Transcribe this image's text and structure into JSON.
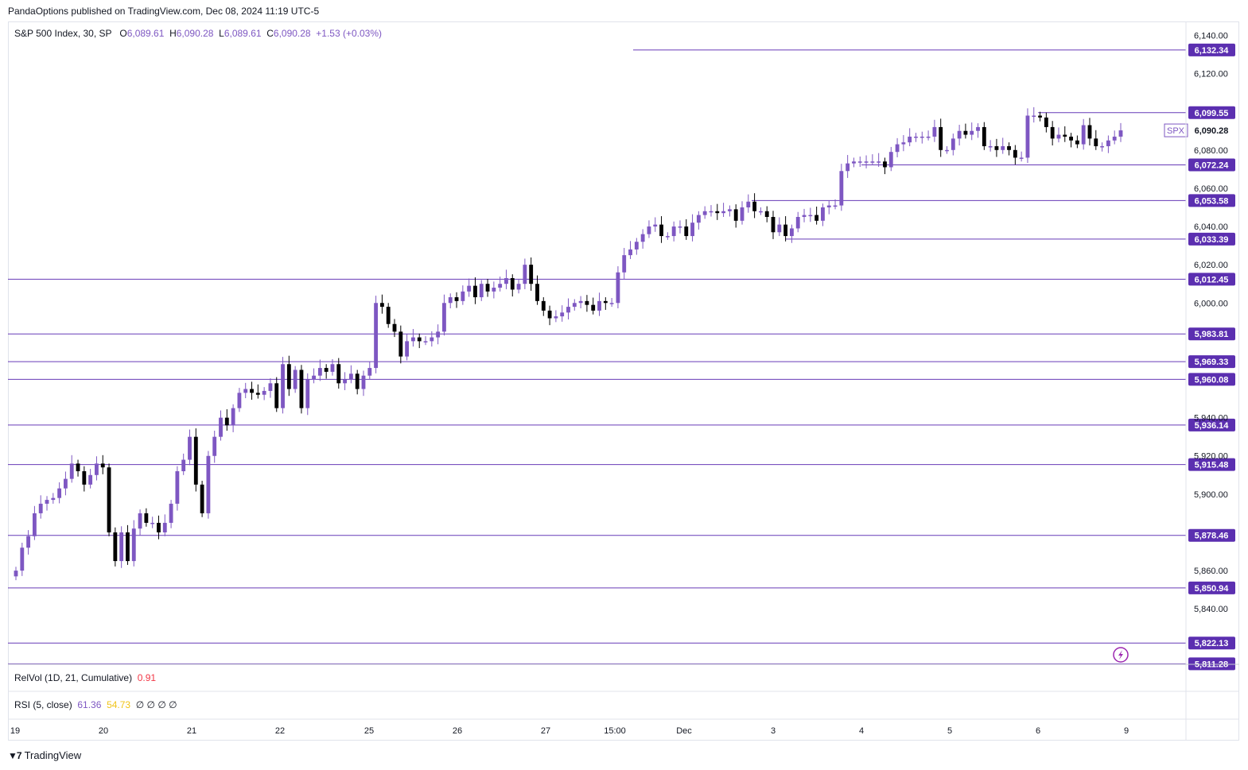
{
  "header": {
    "published": "PandaOptions published on TradingView.com, Dec 08, 2024 11:19 UTC-5"
  },
  "legend": {
    "symbol": "S&P 500 Index, 30, SP",
    "o_label": "O",
    "o_value": "6,089.61",
    "h_label": "H",
    "h_value": "6,090.28",
    "l_label": "L",
    "l_value": "6,089.61",
    "c_label": "C",
    "c_value": "6,090.28",
    "change": "+1.53 (+0.03%)"
  },
  "indicators": {
    "relvol_label": "RelVol (1D, 21, Cumulative)",
    "relvol_value": "0.91",
    "rsi_label": "RSI (5, close)",
    "rsi_value1": "61.36",
    "rsi_value2": "54.73",
    "rsi_nulls": "∅ ∅ ∅ ∅"
  },
  "footer": {
    "brand": "TradingView"
  },
  "colors": {
    "up": "#7e57c2",
    "down": "#000000",
    "level": "#673ab7",
    "relvol": "#f23645",
    "rsi1": "#7e57c2",
    "rsi2": "#f0c419"
  },
  "chart_data": {
    "type": "candlestick",
    "symbol": "SPX",
    "last_price": 6090.28,
    "ylim": [
      5811,
      6146
    ],
    "y_ticks": [
      {
        "value": 6140,
        "label": "6,140.00"
      },
      {
        "value": 6120,
        "label": "6,120.00"
      },
      {
        "value": 6080,
        "label": "6,080.00"
      },
      {
        "value": 6060,
        "label": "6,060.00"
      },
      {
        "value": 6040,
        "label": "6,040.00"
      },
      {
        "value": 6020,
        "label": "6,020.00"
      },
      {
        "value": 6000,
        "label": "6,000.00"
      },
      {
        "value": 5940,
        "label": "5,940.00"
      },
      {
        "value": 5920,
        "label": "5,920.00"
      },
      {
        "value": 5900,
        "label": "5,900.00"
      },
      {
        "value": 5860,
        "label": "5,860.00"
      },
      {
        "value": 5840,
        "label": "5,840.00"
      }
    ],
    "x_ticks": [
      "19",
      "20",
      "21",
      "22",
      "25",
      "26",
      "27",
      "15:00",
      "Dec",
      "3",
      "4",
      "5",
      "6",
      "9"
    ],
    "levels": [
      {
        "value": 6132.34,
        "label": "6,132.34"
      },
      {
        "value": 6099.55,
        "label": "6,099.55"
      },
      {
        "value": 6072.24,
        "label": "6,072.24"
      },
      {
        "value": 6053.58,
        "label": "6,053.58"
      },
      {
        "value": 6033.39,
        "label": "6,033.39"
      },
      {
        "value": 6012.45,
        "label": "6,012.45"
      },
      {
        "value": 5983.81,
        "label": "5,983.81"
      },
      {
        "value": 5969.33,
        "label": "5,969.33"
      },
      {
        "value": 5960.08,
        "label": "5,960.08"
      },
      {
        "value": 5936.14,
        "label": "5,936.14"
      },
      {
        "value": 5915.48,
        "label": "5,915.48"
      },
      {
        "value": 5878.46,
        "label": "5,878.46"
      },
      {
        "value": 5850.94,
        "label": "5,850.94"
      },
      {
        "value": 5822.13,
        "label": "5,822.13"
      },
      {
        "value": 5811.28,
        "label": "5,811.28"
      }
    ],
    "closes": [
      5860,
      5872,
      5878,
      5890,
      5895,
      5897,
      5898,
      5903,
      5908,
      5916,
      5912,
      5905,
      5910,
      5916,
      5914,
      5880,
      5865,
      5880,
      5865,
      5882,
      5890,
      5885,
      5885,
      5880,
      5885,
      5895,
      5912,
      5918,
      5930,
      5905,
      5890,
      5920,
      5930,
      5940,
      5936,
      5945,
      5953,
      5955,
      5953,
      5952,
      5954,
      5958,
      5945,
      5968,
      5955,
      5965,
      5945,
      5960,
      5962,
      5966,
      5964,
      5968,
      5958,
      5960,
      5963,
      5955,
      5962,
      5966,
      6000,
      5998,
      5989,
      5985,
      5972,
      5980,
      5982,
      5980,
      5980,
      5982,
      5985,
      6000,
      6003,
      6001,
      6006,
      6009,
      6003,
      6010,
      6006,
      6008,
      6010,
      6013,
      6007,
      6010,
      6020,
      6010,
      6001,
      5996,
      5992,
      5993,
      5995,
      5998,
      6000,
      6001,
      5999,
      5996,
      6001,
      6000,
      6000,
      6016,
      6025,
      6028,
      6032,
      6036,
      6040,
      6041,
      6035,
      6035,
      6040,
      6040,
      6035,
      6042,
      6046,
      6048,
      6048,
      6047,
      6048,
      6049,
      6043,
      6050,
      6053,
      6048,
      6048,
      6045,
      6037,
      6041,
      6035,
      6039,
      6045,
      6046,
      6046,
      6043,
      6050,
      6051,
      6051,
      6069,
      6073,
      6074,
      6074,
      6074,
      6074,
      6074,
      6071,
      6079,
      6083,
      6084,
      6087,
      6087,
      6087,
      6087,
      6092,
      6080,
      6080,
      6086,
      6090,
      6088,
      6090,
      6092,
      6082,
      6082,
      6080,
      6082,
      6080,
      6076,
      6076,
      6098,
      6098,
      6097,
      6092,
      6086,
      6088,
      6087,
      6085,
      6083,
      6093,
      6086,
      6082,
      6082,
      6085,
      6087,
      6090.28
    ]
  }
}
